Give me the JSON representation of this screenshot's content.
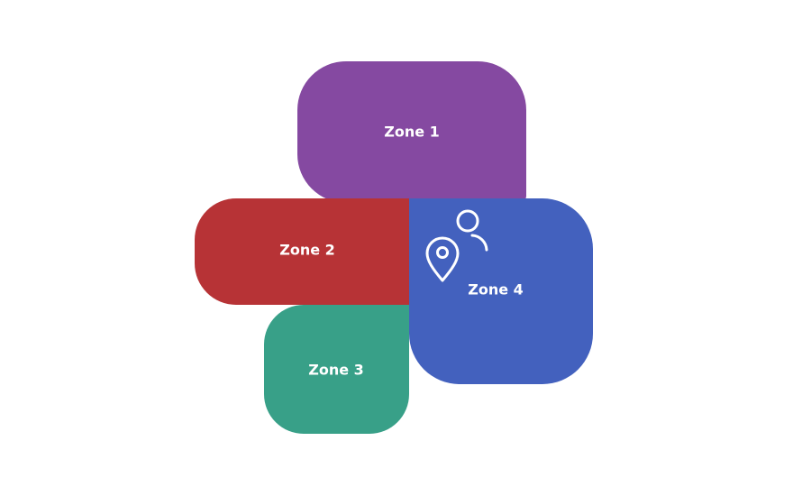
{
  "diagram": {
    "zones": [
      {
        "id": "zone-1",
        "label": "Zone 1",
        "color": "#8549A1"
      },
      {
        "id": "zone-2",
        "label": "Zone 2",
        "color": "#B73336"
      },
      {
        "id": "zone-3",
        "label": "Zone 3",
        "color": "#38A088"
      },
      {
        "id": "zone-4",
        "label": "Zone 4",
        "color": "#4361BE"
      }
    ],
    "icons": [
      "location-pin-icon",
      "person-icon"
    ],
    "icon_color": "#ffffff"
  }
}
